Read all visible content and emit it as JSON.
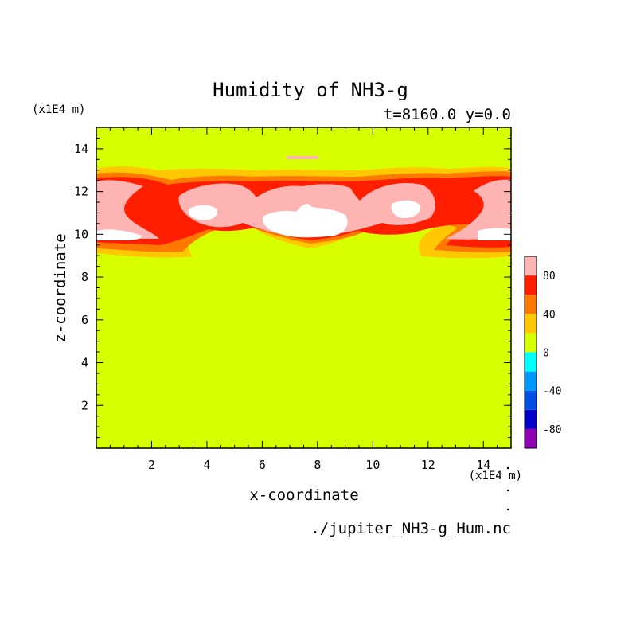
{
  "chart_data": {
    "type": "heatmap",
    "title": "Humidity of NH3-g",
    "subtitle": "t=8160.0 y=0.0",
    "xlabel": "x-coordinate",
    "ylabel": "z-coordinate",
    "x_unit": "(x1E4 m)",
    "y_unit": "(x1E4 m)",
    "source_file": "./jupiter_NH3-g_Hum.nc",
    "xlim": [
      0,
      15
    ],
    "ylim": [
      0,
      15
    ],
    "x_ticks": [
      "2",
      "4",
      "6",
      "8",
      "10",
      "12",
      "14"
    ],
    "y_ticks": [
      "2",
      "4",
      "6",
      "8",
      "10",
      "12",
      "14"
    ],
    "colorbar": {
      "range": [
        -100,
        100
      ],
      "tick_labels": [
        "80",
        "40",
        "0",
        "-40",
        "-80"
      ],
      "levels": [
        {
          "min": -100,
          "max": -80,
          "color": "#8f00b4"
        },
        {
          "min": -80,
          "max": -60,
          "color": "#0000c8"
        },
        {
          "min": -60,
          "max": -40,
          "color": "#0050e6"
        },
        {
          "min": -40,
          "max": -20,
          "color": "#0098ff"
        },
        {
          "min": -20,
          "max": 0,
          "color": "#00ffff"
        },
        {
          "min": 0,
          "max": 20,
          "color": "#d7ff00"
        },
        {
          "min": 20,
          "max": 40,
          "color": "#ffc800"
        },
        {
          "min": 40,
          "max": 60,
          "color": "#ff7800"
        },
        {
          "min": 60,
          "max": 80,
          "color": "#ff1e00"
        },
        {
          "min": 80,
          "max": 100,
          "color": "#ffb4b4"
        }
      ]
    },
    "background_level_color": "#d7ff00",
    "saturated_color": "#ffffff"
  }
}
